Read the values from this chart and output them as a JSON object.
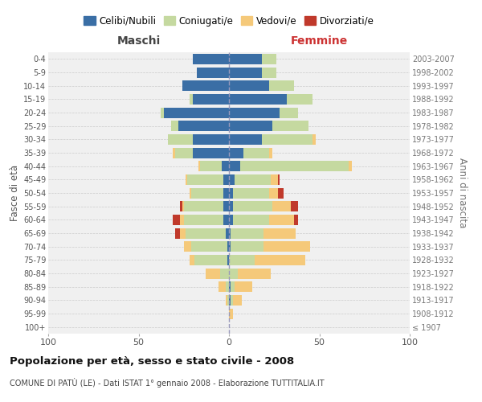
{
  "age_groups": [
    "100+",
    "95-99",
    "90-94",
    "85-89",
    "80-84",
    "75-79",
    "70-74",
    "65-69",
    "60-64",
    "55-59",
    "50-54",
    "45-49",
    "40-44",
    "35-39",
    "30-34",
    "25-29",
    "20-24",
    "15-19",
    "10-14",
    "5-9",
    "0-4"
  ],
  "birth_years": [
    "≤ 1907",
    "1908-1912",
    "1913-1917",
    "1918-1922",
    "1923-1927",
    "1928-1932",
    "1933-1937",
    "1938-1942",
    "1943-1947",
    "1948-1952",
    "1953-1957",
    "1958-1962",
    "1963-1967",
    "1968-1972",
    "1973-1977",
    "1978-1982",
    "1983-1987",
    "1988-1992",
    "1993-1997",
    "1998-2002",
    "2003-2007"
  ],
  "male_celibi": [
    0,
    0,
    0,
    0,
    0,
    1,
    1,
    2,
    3,
    3,
    3,
    3,
    4,
    20,
    20,
    28,
    36,
    20,
    26,
    18,
    20
  ],
  "male_coniugati": [
    0,
    0,
    1,
    2,
    5,
    18,
    20,
    22,
    22,
    22,
    18,
    20,
    12,
    10,
    14,
    4,
    2,
    2,
    0,
    0,
    0
  ],
  "male_vedovi": [
    0,
    0,
    1,
    4,
    8,
    3,
    4,
    3,
    2,
    1,
    1,
    1,
    1,
    1,
    0,
    0,
    0,
    0,
    0,
    0,
    0
  ],
  "male_divorziati": [
    0,
    0,
    0,
    0,
    0,
    0,
    0,
    3,
    4,
    1,
    0,
    0,
    0,
    0,
    0,
    0,
    0,
    0,
    0,
    0,
    0
  ],
  "female_nubili": [
    0,
    0,
    1,
    1,
    0,
    0,
    1,
    1,
    2,
    2,
    2,
    3,
    6,
    8,
    18,
    24,
    28,
    32,
    22,
    18,
    18
  ],
  "female_coniugate": [
    0,
    0,
    1,
    2,
    5,
    14,
    18,
    18,
    20,
    22,
    20,
    20,
    60,
    14,
    28,
    20,
    10,
    14,
    14,
    8,
    8
  ],
  "female_vedove": [
    0,
    2,
    5,
    10,
    18,
    28,
    26,
    18,
    14,
    10,
    5,
    4,
    2,
    2,
    2,
    0,
    0,
    0,
    0,
    0,
    0
  ],
  "female_divorziate": [
    0,
    0,
    0,
    0,
    0,
    0,
    0,
    0,
    2,
    4,
    3,
    1,
    0,
    0,
    0,
    0,
    0,
    0,
    0,
    0,
    0
  ],
  "color_celibi": "#3a6ea5",
  "color_coniugati": "#c5d9a0",
  "color_vedovi": "#f5c97a",
  "color_divorziati": "#c0392b",
  "xlim": 100,
  "bg_color": "#f0f0f0",
  "grid_color": "#cccccc",
  "title": "Popolazione per età, sesso e stato civile - 2008",
  "subtitle": "COMUNE DI PATÙ (LE) - Dati ISTAT 1° gennaio 2008 - Elaborazione TUTTITALIA.IT",
  "ylabel_left": "Fasce di età",
  "ylabel_right": "Anni di nascita",
  "label_maschi": "Maschi",
  "label_femmine": "Femmine",
  "legend_labels": [
    "Celibi/Nubili",
    "Coniugati/e",
    "Vedovi/e",
    "Divorziati/e"
  ]
}
